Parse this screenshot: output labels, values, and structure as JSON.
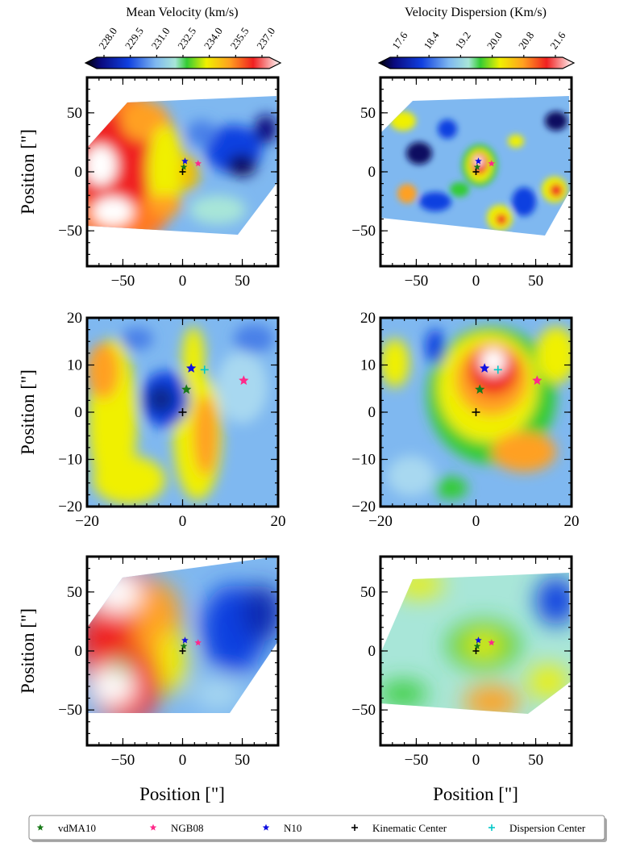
{
  "colorbars": [
    {
      "title": "Mean Velocity (km/s)",
      "ticks": [
        "228.0",
        "229.5",
        "231.0",
        "232.5",
        "234.0",
        "235.5",
        "237.0"
      ]
    },
    {
      "title": "Velocity Dispersion (Km/s)",
      "ticks": [
        "17.6",
        "18.4",
        "19.2",
        "20.0",
        "20.8",
        "21.6"
      ]
    }
  ],
  "axis_label_y": "Position [\"]",
  "axis_label_x": "Position [\"]",
  "legend": [
    {
      "label": "vdMA10",
      "color": "#1a7a1a",
      "marker": "star"
    },
    {
      "label": "NGB08",
      "color": "#ff2a8a",
      "marker": "star"
    },
    {
      "label": "N10",
      "color": "#1010e0",
      "marker": "star"
    },
    {
      "label": "Kinematic Center",
      "color": "#000000",
      "marker": "plus"
    },
    {
      "label": "Dispersion Center",
      "color": "#00c8c8",
      "marker": "plus"
    }
  ],
  "chart_data": [
    {
      "type": "heatmap",
      "quantity": "mean-velocity",
      "xlim": [
        -80,
        80
      ],
      "ylim": [
        -80,
        80
      ],
      "xticks": [
        -50,
        0,
        50
      ],
      "yticks": [
        -50,
        0,
        50
      ],
      "ylabel": "Position [\"]",
      "xlabel": "",
      "markers": [
        {
          "name": "vdMA10",
          "x": 1,
          "y": 4
        },
        {
          "name": "NGB08",
          "x": 13,
          "y": 7
        },
        {
          "name": "N10",
          "x": 2,
          "y": 9
        },
        {
          "name": "Kinematic Center",
          "x": 0,
          "y": 0
        }
      ]
    },
    {
      "type": "heatmap",
      "quantity": "velocity-dispersion",
      "xlim": [
        -80,
        80
      ],
      "ylim": [
        -80,
        80
      ],
      "xticks": [
        -50,
        0,
        50
      ],
      "yticks": [
        -50,
        0,
        50
      ],
      "ylabel": "Position [\"]",
      "xlabel": "",
      "markers": [
        {
          "name": "vdMA10",
          "x": 1,
          "y": 4
        },
        {
          "name": "NGB08",
          "x": 13,
          "y": 7
        },
        {
          "name": "N10",
          "x": 2,
          "y": 9
        },
        {
          "name": "Kinematic Center",
          "x": 0,
          "y": 0
        }
      ]
    },
    {
      "type": "heatmap",
      "quantity": "mean-velocity",
      "xlim": [
        -20,
        20
      ],
      "ylim": [
        -20,
        20
      ],
      "xticks": [
        -20,
        0,
        20
      ],
      "yticks": [
        -20,
        -10,
        0,
        10,
        20
      ],
      "ylabel": "Position [\"]",
      "xlabel": "",
      "markers": [
        {
          "name": "vdMA10",
          "x": 0.8,
          "y": 4.8
        },
        {
          "name": "NGB08",
          "x": 12.8,
          "y": 6.7
        },
        {
          "name": "N10",
          "x": 1.8,
          "y": 9.3
        },
        {
          "name": "Kinematic Center",
          "x": 0,
          "y": 0
        },
        {
          "name": "Dispersion Center",
          "x": 4.6,
          "y": 9
        }
      ]
    },
    {
      "type": "heatmap",
      "quantity": "velocity-dispersion",
      "xlim": [
        -20,
        20
      ],
      "ylim": [
        -20,
        20
      ],
      "xticks": [
        -20,
        0,
        20
      ],
      "yticks": [
        -20,
        -10,
        0,
        10,
        20
      ],
      "ylabel": "Position [\"]",
      "xlabel": "",
      "markers": [
        {
          "name": "vdMA10",
          "x": 0.8,
          "y": 4.8
        },
        {
          "name": "NGB08",
          "x": 12.8,
          "y": 6.7
        },
        {
          "name": "N10",
          "x": 1.8,
          "y": 9.3
        },
        {
          "name": "Kinematic Center",
          "x": 0,
          "y": 0
        },
        {
          "name": "Dispersion Center",
          "x": 4.6,
          "y": 9
        }
      ]
    },
    {
      "type": "heatmap",
      "quantity": "mean-velocity",
      "xlim": [
        -80,
        80
      ],
      "ylim": [
        -80,
        80
      ],
      "xticks": [
        -50,
        0,
        50
      ],
      "yticks": [
        -50,
        0,
        50
      ],
      "ylabel": "Position [\"]",
      "xlabel": "Position [\"]",
      "markers": [
        {
          "name": "vdMA10",
          "x": 1,
          "y": 4
        },
        {
          "name": "NGB08",
          "x": 13,
          "y": 7
        },
        {
          "name": "N10",
          "x": 2,
          "y": 9
        },
        {
          "name": "Kinematic Center",
          "x": 0,
          "y": 0
        }
      ]
    },
    {
      "type": "heatmap",
      "quantity": "velocity-dispersion",
      "xlim": [
        -80,
        80
      ],
      "ylim": [
        -80,
        80
      ],
      "xticks": [
        -50,
        0,
        50
      ],
      "yticks": [
        -50,
        0,
        50
      ],
      "ylabel": "Position [\"]",
      "xlabel": "Position [\"]",
      "markers": [
        {
          "name": "vdMA10",
          "x": 1,
          "y": 4
        },
        {
          "name": "NGB08",
          "x": 13,
          "y": 7
        },
        {
          "name": "N10",
          "x": 2,
          "y": 9
        },
        {
          "name": "Kinematic Center",
          "x": 0,
          "y": 0
        }
      ]
    }
  ]
}
